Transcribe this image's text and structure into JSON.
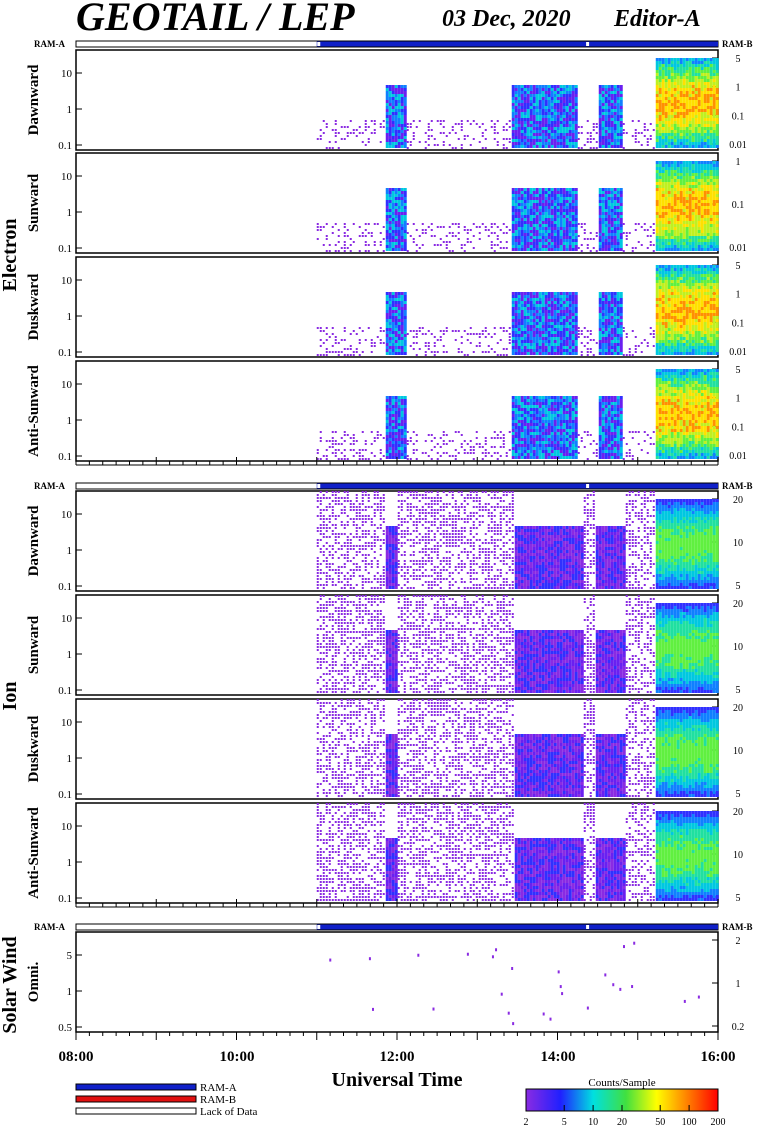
{
  "header": {
    "title": "GEOTAIL / LEP",
    "date": "03 Dec, 2020",
    "editor": "Editor-A"
  },
  "chart_data": {
    "type": "heatmap",
    "time_axis": {
      "ticks": [
        "08:00",
        "10:00",
        "12:00",
        "14:00",
        "16:00"
      ],
      "range_hours": [
        8,
        16
      ],
      "label": "Universal Time"
    },
    "ram_labels": {
      "a": "RAM-A",
      "b": "RAM-B"
    },
    "ram_bars": [
      {
        "section": "electron",
        "ram_b_start": 11.0,
        "gaps": [
          11.0,
          14.35
        ]
      },
      {
        "section": "ion",
        "ram_b_start": 11.0,
        "gaps": [
          11.0,
          14.35
        ]
      },
      {
        "section": "solar_wind",
        "ram_b_start": 11.0,
        "gaps": [
          11.0,
          14.35
        ]
      }
    ],
    "data_start_hour": 11.0,
    "groups": [
      {
        "label": "Electron",
        "panels": [
          {
            "label": "Dawnward",
            "left_ticks": [
              "10",
              "1",
              "0.1"
            ],
            "right_ticks": [
              "5",
              "1",
              "0.1",
              "0.01"
            ]
          },
          {
            "label": "Sunward",
            "left_ticks": [
              "10",
              "1",
              "0.1"
            ],
            "right_ticks": [
              "1",
              "0.1",
              "0.01"
            ]
          },
          {
            "label": "Duskward",
            "left_ticks": [
              "10",
              "1",
              "0.1"
            ],
            "right_ticks": [
              "5",
              "1",
              "0.1",
              "0.01"
            ]
          },
          {
            "label": "Anti-Sunward",
            "left_ticks": [
              "10",
              "1",
              "0.1"
            ],
            "right_ticks": [
              "5",
              "1",
              "0.1",
              "0.01"
            ]
          }
        ]
      },
      {
        "label": "Ion",
        "panels": [
          {
            "label": "Dawnward",
            "left_ticks": [
              "10",
              "1",
              "0.1"
            ],
            "right_ticks": [
              "20",
              "10",
              "5"
            ]
          },
          {
            "label": "Sunward",
            "left_ticks": [
              "10",
              "1",
              "0.1"
            ],
            "right_ticks": [
              "20",
              "10",
              "5"
            ]
          },
          {
            "label": "Duskward",
            "left_ticks": [
              "10",
              "1",
              "0.1"
            ],
            "right_ticks": [
              "20",
              "10",
              "5"
            ]
          },
          {
            "label": "Anti-Sunward",
            "left_ticks": [
              "10",
              "1",
              "0.1"
            ],
            "right_ticks": [
              "20",
              "10",
              "5"
            ]
          }
        ]
      },
      {
        "label": "Solar Wind",
        "panels": [
          {
            "label": "Omni.",
            "left_ticks": [
              "5",
              "1",
              "0.5"
            ],
            "right_ticks": [
              "2",
              "1",
              "0.2"
            ]
          }
        ]
      }
    ],
    "activity_blocks_hours": [
      {
        "panel_group": "electron",
        "intervals": [
          [
            11.85,
            12.1
          ],
          [
            13.4,
            14.25
          ],
          [
            14.5,
            14.8
          ],
          [
            15.2,
            16.0
          ]
        ]
      },
      {
        "panel_group": "ion",
        "intervals": [
          [
            11.85,
            12.0
          ],
          [
            13.45,
            14.3
          ],
          [
            14.45,
            14.85
          ],
          [
            15.2,
            16.0
          ]
        ]
      }
    ],
    "legend": {
      "items": [
        {
          "label": "RAM-A",
          "color": "#1020c8"
        },
        {
          "label": "RAM-B",
          "color": "#e01010"
        },
        {
          "label": "Lack of Data",
          "color": "#ffffff"
        }
      ]
    },
    "colorbar": {
      "title": "Counts/Sample",
      "ticks": [
        "2",
        "5",
        "10",
        "20",
        "50",
        "100",
        "200"
      ],
      "scale": "log",
      "range": [
        2,
        200
      ]
    }
  },
  "colors": {
    "ram_a": "#1020c8",
    "ram_b": "#e01010",
    "low": "#8a2be2",
    "high": "#ff2000"
  }
}
